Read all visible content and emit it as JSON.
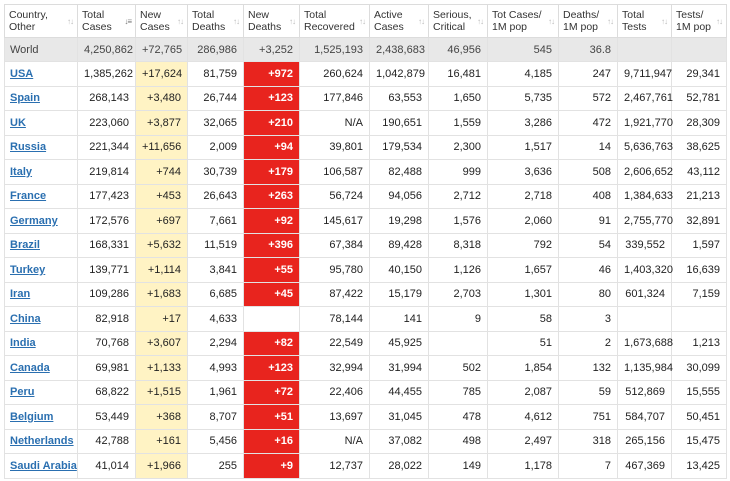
{
  "columns": [
    [
      "Country,",
      "Other"
    ],
    [
      "Total",
      "Cases"
    ],
    [
      "New",
      "Cases"
    ],
    [
      "Total",
      "Deaths"
    ],
    [
      "New",
      "Deaths"
    ],
    [
      "Total",
      "Recovered"
    ],
    [
      "Active",
      "Cases"
    ],
    [
      "Serious,",
      "Critical"
    ],
    [
      "Tot Cases/",
      "1M pop"
    ],
    [
      "Deaths/",
      "1M pop"
    ],
    [
      "Total",
      "Tests"
    ],
    [
      "Tests/",
      "1M pop"
    ]
  ],
  "world": [
    "World",
    "4,250,862",
    "+72,765",
    "286,986",
    "+3,252",
    "1,525,193",
    "2,438,683",
    "46,956",
    "545",
    "36.8",
    "",
    ""
  ],
  "rows": [
    [
      "USA",
      "1,385,262",
      "+17,624",
      "81,759",
      "+972",
      "260,624",
      "1,042,879",
      "16,481",
      "4,185",
      "247",
      "9,711,947",
      "29,341"
    ],
    [
      "Spain",
      "268,143",
      "+3,480",
      "26,744",
      "+123",
      "177,846",
      "63,553",
      "1,650",
      "5,735",
      "572",
      "2,467,761",
      "52,781"
    ],
    [
      "UK",
      "223,060",
      "+3,877",
      "32,065",
      "+210",
      "N/A",
      "190,651",
      "1,559",
      "3,286",
      "472",
      "1,921,770",
      "28,309"
    ],
    [
      "Russia",
      "221,344",
      "+11,656",
      "2,009",
      "+94",
      "39,801",
      "179,534",
      "2,300",
      "1,517",
      "14",
      "5,636,763",
      "38,625"
    ],
    [
      "Italy",
      "219,814",
      "+744",
      "30,739",
      "+179",
      "106,587",
      "82,488",
      "999",
      "3,636",
      "508",
      "2,606,652",
      "43,112"
    ],
    [
      "France",
      "177,423",
      "+453",
      "26,643",
      "+263",
      "56,724",
      "94,056",
      "2,712",
      "2,718",
      "408",
      "1,384,633",
      "21,213"
    ],
    [
      "Germany",
      "172,576",
      "+697",
      "7,661",
      "+92",
      "145,617",
      "19,298",
      "1,576",
      "2,060",
      "91",
      "2,755,770",
      "32,891"
    ],
    [
      "Brazil",
      "168,331",
      "+5,632",
      "11,519",
      "+396",
      "67,384",
      "89,428",
      "8,318",
      "792",
      "54",
      "339,552",
      "1,597"
    ],
    [
      "Turkey",
      "139,771",
      "+1,114",
      "3,841",
      "+55",
      "95,780",
      "40,150",
      "1,126",
      "1,657",
      "46",
      "1,403,320",
      "16,639"
    ],
    [
      "Iran",
      "109,286",
      "+1,683",
      "6,685",
      "+45",
      "87,422",
      "15,179",
      "2,703",
      "1,301",
      "80",
      "601,324",
      "7,159"
    ],
    [
      "China",
      "82,918",
      "+17",
      "4,633",
      "",
      "78,144",
      "141",
      "9",
      "58",
      "3",
      "",
      ""
    ],
    [
      "India",
      "70,768",
      "+3,607",
      "2,294",
      "+82",
      "22,549",
      "45,925",
      "",
      "51",
      "2",
      "1,673,688",
      "1,213"
    ],
    [
      "Canada",
      "69,981",
      "+1,133",
      "4,993",
      "+123",
      "32,994",
      "31,994",
      "502",
      "1,854",
      "132",
      "1,135,984",
      "30,099"
    ],
    [
      "Peru",
      "68,822",
      "+1,515",
      "1,961",
      "+72",
      "22,406",
      "44,455",
      "785",
      "2,087",
      "59",
      "512,869",
      "15,555"
    ],
    [
      "Belgium",
      "53,449",
      "+368",
      "8,707",
      "+51",
      "13,697",
      "31,045",
      "478",
      "4,612",
      "751",
      "584,707",
      "50,451"
    ],
    [
      "Netherlands",
      "42,788",
      "+161",
      "5,456",
      "+16",
      "N/A",
      "37,082",
      "498",
      "2,497",
      "318",
      "265,156",
      "15,475"
    ],
    [
      "Saudi Arabia",
      "41,014",
      "+1,966",
      "255",
      "+9",
      "12,737",
      "28,022",
      "149",
      "1,178",
      "7",
      "467,369",
      "13,425"
    ]
  ],
  "colors": {
    "new_cases_bg": "#fff3c4",
    "new_deaths_bg": "#e8241e",
    "world_bg": "#e8e8e8",
    "link": "#2a6fb0"
  },
  "icons": {
    "sort": "sort-arrows-icon",
    "sort_active": "sort-desc-icon"
  }
}
